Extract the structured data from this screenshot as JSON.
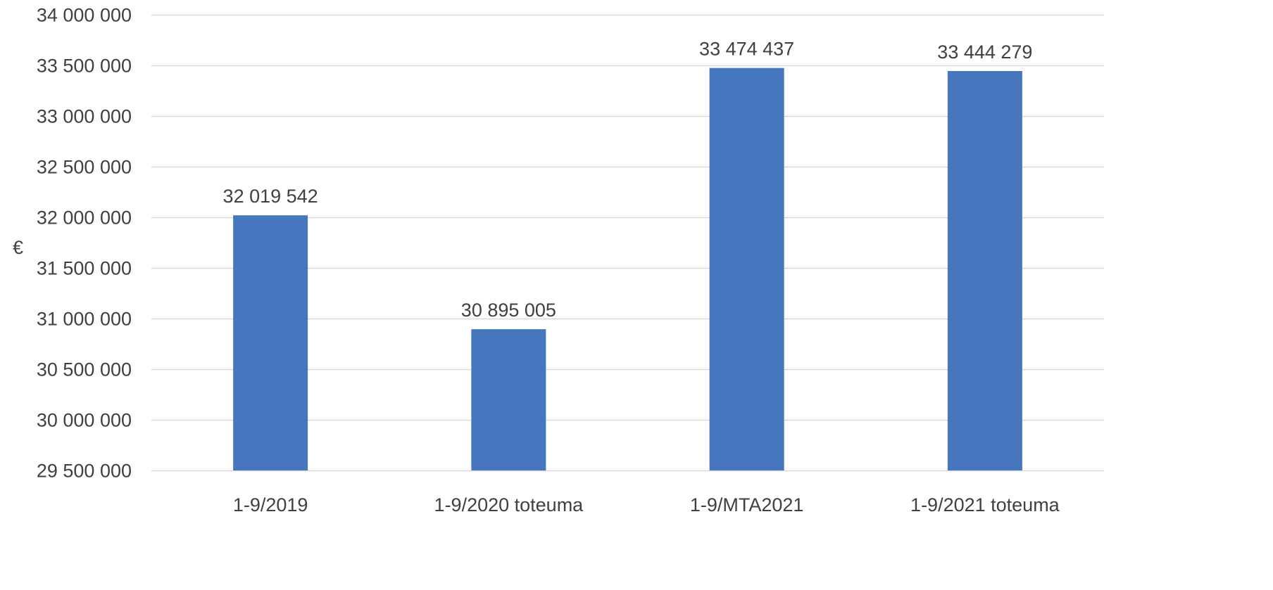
{
  "chart_data": {
    "type": "bar",
    "categories": [
      "1-9/2019",
      "1-9/2020 toteuma",
      "1-9/MTA2021",
      "1-9/2021 toteuma"
    ],
    "values": [
      32019542,
      30895005,
      33474437,
      33444279
    ],
    "value_labels": [
      "32 019 542",
      "30 895 005",
      "33 474 437",
      "33 444 279"
    ],
    "ylabel": "€",
    "ylim": [
      29500000,
      34000000
    ],
    "y_ticks": [
      29500000,
      30000000,
      30500000,
      31000000,
      31500000,
      32000000,
      32500000,
      33000000,
      33500000,
      34000000
    ],
    "y_tick_labels": [
      "29 500 000",
      "30 000 000",
      "30 500 000",
      "31 000 000",
      "31 500 000",
      "32 000 000",
      "32 500 000",
      "33 000 000",
      "33 500 000",
      "34 000 000"
    ],
    "grid": true,
    "legend": "none",
    "bar_color": "#4677BE",
    "grid_color": "#D9D9D9",
    "text_color": "#404040"
  }
}
